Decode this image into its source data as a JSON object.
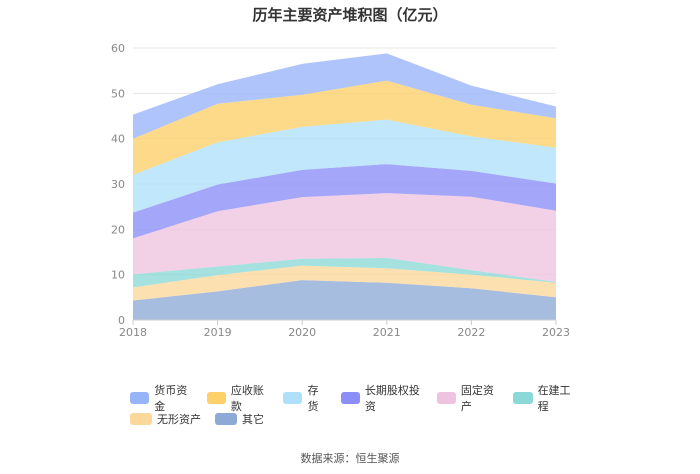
{
  "chart_data": {
    "type": "area",
    "stacked": true,
    "title": "历年主要资产堆积图（亿元）",
    "x": [
      "2018",
      "2019",
      "2020",
      "2021",
      "2022",
      "2023"
    ],
    "ylim": [
      0,
      60
    ],
    "yticks": [
      "0",
      "10",
      "20",
      "30",
      "40",
      "50",
      "60"
    ],
    "grid": "horizontal",
    "legend_position": "bottom",
    "series": [
      {
        "name": "其它",
        "color": "#8daad6",
        "values": [
          4.3,
          6.3,
          8.8,
          8.2,
          7.0,
          5.0
        ]
      },
      {
        "name": "无形资产",
        "color": "#fcd79a",
        "values": [
          2.9,
          3.6,
          3.2,
          3.2,
          3.0,
          3.2
        ]
      },
      {
        "name": "在建工程",
        "color": "#8ad9d6",
        "values": [
          2.9,
          1.9,
          1.5,
          2.3,
          1.0,
          0.2
        ]
      },
      {
        "name": "固定资产",
        "color": "#eec3df",
        "values": [
          7.9,
          12.2,
          13.6,
          14.3,
          16.2,
          15.7
        ]
      },
      {
        "name": "长期股权投资",
        "color": "#8b8ef7",
        "values": [
          5.7,
          5.9,
          6.0,
          6.4,
          5.7,
          6.0
        ]
      },
      {
        "name": "存货",
        "color": "#aee0fb",
        "values": [
          8.3,
          9.3,
          9.5,
          9.8,
          7.6,
          7.9
        ]
      },
      {
        "name": "应收账款",
        "color": "#fdd069",
        "values": [
          8.0,
          8.5,
          7.1,
          8.6,
          7.0,
          6.5
        ]
      },
      {
        "name": "货币资金",
        "color": "#98b4f9",
        "values": [
          5.3,
          4.3,
          6.8,
          6.0,
          4.2,
          2.6
        ]
      }
    ]
  },
  "legend_rows": [
    [
      "货币资金",
      "应收账款",
      "存货",
      "长期股权投资",
      "固定资产",
      "在建工程"
    ],
    [
      "无形资产",
      "其它"
    ]
  ],
  "source": "数据来源：恒生聚源"
}
